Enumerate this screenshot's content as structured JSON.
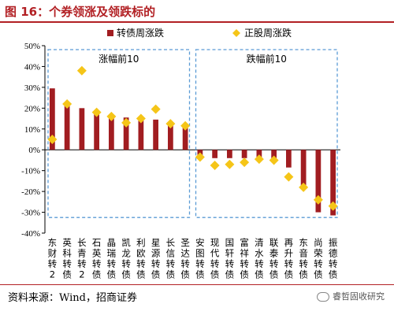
{
  "header": {
    "title": "图 16：个券领涨及领跌标的"
  },
  "footer": {
    "source": "资料来源：Wind，招商证券",
    "watermark": "睿哲固收研究"
  },
  "colors": {
    "bar": "#a11d21",
    "marker": "#f5c518",
    "box": "#5b9bd5",
    "title": "#b22024"
  },
  "chart_data": {
    "type": "bar",
    "categories": [
      "东财转2",
      "英科转债",
      "长青转2",
      "石英转债",
      "晶瑞转债",
      "凯龙转债",
      "利欧转债",
      "星源转债",
      "长信转债",
      "圣达转债",
      "安图转债",
      "现代转债",
      "国轩转债",
      "富祥转债",
      "清水转债",
      "联泰转债",
      "再升转债",
      "东音转债",
      "尚荣转债",
      "振德转债"
    ],
    "series": [
      {
        "name": "转债周涨跌",
        "kind": "bar",
        "values": [
          29.5,
          21.5,
          20,
          17.5,
          16,
          15.5,
          14,
          14.5,
          12.5,
          11.5,
          -3,
          -4,
          -4,
          -4,
          -4,
          -4,
          -8.5,
          -18,
          -30,
          -31.5
        ]
      },
      {
        "name": "正股周涨跌",
        "kind": "diamond",
        "values": [
          5,
          22,
          38,
          18,
          16,
          13,
          15,
          19.5,
          12.5,
          11.5,
          -3.5,
          -7.5,
          -7,
          -6,
          -4.5,
          -5,
          -13,
          -18,
          -24,
          -27
        ]
      }
    ],
    "ylim": [
      -40,
      50
    ],
    "yticks": [
      -40,
      -30,
      -20,
      -10,
      0,
      10,
      20,
      30,
      40,
      50
    ],
    "ytick_labels": [
      "-40%",
      "-30%",
      "-20%",
      "-10%",
      "0%",
      "10%",
      "20%",
      "30%",
      "40%",
      "50%"
    ],
    "groups": [
      {
        "label": "涨幅前10",
        "from": 0,
        "to": 9
      },
      {
        "label": "跌幅前10",
        "from": 10,
        "to": 19
      }
    ],
    "legend_position": "top"
  }
}
